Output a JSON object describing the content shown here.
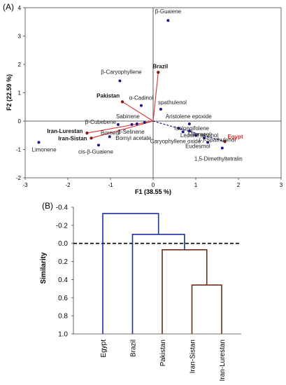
{
  "figure": {
    "panel_a_label": "(A)",
    "panel_b_label": "(B)"
  },
  "chart_data": [
    {
      "type": "scatter",
      "subtype": "pca-biplot",
      "xlabel": "F1 (38.55 %)",
      "ylabel": "F2 (22.59 %)",
      "xlim": [
        -3,
        3
      ],
      "ylim": [
        -2,
        4
      ],
      "xticks": [
        -3,
        -2,
        -1,
        0,
        1,
        2,
        3
      ],
      "yticks": [
        -2,
        -1,
        0,
        1,
        2,
        3,
        4
      ],
      "grid": false,
      "colors": {
        "compound_marker": "#1a1a8c",
        "sample_marker": "#8b1a1a",
        "sample_vector": "#e03030",
        "egypt_label": "#e03030",
        "dashed_vector": "#1a1a8c"
      },
      "compounds": [
        {
          "label": "β-Guaiene",
          "x": 0.35,
          "y": 3.55
        },
        {
          "label": "β-Caryophyllene",
          "x": -0.78,
          "y": 1.42
        },
        {
          "label": "α-Cadinol",
          "x": -0.28,
          "y": 0.55
        },
        {
          "label": "spathulenol",
          "x": 0.18,
          "y": 0.42
        },
        {
          "label": "Sabinene",
          "x": -0.2,
          "y": -0.05
        },
        {
          "label": "β-Cubebene",
          "x": -0.82,
          "y": -0.12
        },
        {
          "label": "β-Selinene",
          "x": -0.5,
          "y": -0.12
        },
        {
          "label": "Bornyl acetate",
          "x": -0.38,
          "y": -0.1
        },
        {
          "label": "Borneol",
          "x": -1.02,
          "y": -0.55
        },
        {
          "label": "cis-β-Guaiene",
          "x": -1.28,
          "y": -0.85
        },
        {
          "label": "Limonene",
          "x": -2.68,
          "y": -0.75
        },
        {
          "label": "Aristolene epoxide",
          "x": 0.85,
          "y": -0.1
        },
        {
          "label": "Isolongifolene",
          "x": 0.6,
          "y": -0.25
        },
        {
          "label": "Ledene alcohol",
          "x": 0.85,
          "y": -0.35
        },
        {
          "label": "Caryophyllene oxide",
          "x": 0.7,
          "y": -0.38
        },
        {
          "label": "l-Borneol",
          "x": 1.0,
          "y": -0.5
        },
        {
          "label": "(-)-Spathulenol",
          "x": 1.2,
          "y": -0.6
        },
        {
          "label": "Eudesmol",
          "x": 1.28,
          "y": -0.75
        },
        {
          "label": "1,5-Dimethyltetralin",
          "x": 1.62,
          "y": -0.95
        }
      ],
      "samples": [
        {
          "label": "Brazil",
          "x": 0.12,
          "y": 1.72
        },
        {
          "label": "Pakistan",
          "x": -0.72,
          "y": 0.68
        },
        {
          "label": "Iran-Lurestan",
          "x": -1.55,
          "y": -0.42
        },
        {
          "label": "Iran-Sistan",
          "x": -1.45,
          "y": -0.6
        },
        {
          "label": "Egypt",
          "x": 1.68,
          "y": -0.72
        }
      ]
    },
    {
      "type": "dendrogram",
      "ylabel": "Similarity",
      "ylim": [
        -0.4,
        1.0
      ],
      "yticks": [
        -0.4,
        -0.2,
        0.0,
        0.2,
        0.4,
        0.6,
        0.8,
        1.0
      ],
      "ytick_labels": [
        "-0.4",
        "-0.2",
        "0.0",
        "0.2",
        "0.4",
        "0.6",
        "0.8",
        "1.0"
      ],
      "reference_line": 0.0,
      "leaves": [
        "Egypt",
        "Brazil",
        "Pakistan",
        "Iran-Sistan",
        "Iran-Lurestan"
      ],
      "colors": {
        "blue_cluster": "#1f2fa0",
        "brown_cluster": "#6b2e1a",
        "reference_line": "#000000"
      },
      "merges": [
        {
          "a": "Iran-Sistan",
          "b": "Iran-Lurestan",
          "similarity": 0.46,
          "color": "brown"
        },
        {
          "a": "Pakistan",
          "b": "Iran-Sistan+Iran-Lurestan",
          "similarity": 0.07,
          "color": "brown"
        },
        {
          "a": "Brazil",
          "b": "Pakistan+Iran",
          "similarity": -0.1,
          "color": "blue"
        },
        {
          "a": "Egypt",
          "b": "Brazil+Pakistan+Iran",
          "similarity": -0.33,
          "color": "blue"
        }
      ]
    }
  ]
}
